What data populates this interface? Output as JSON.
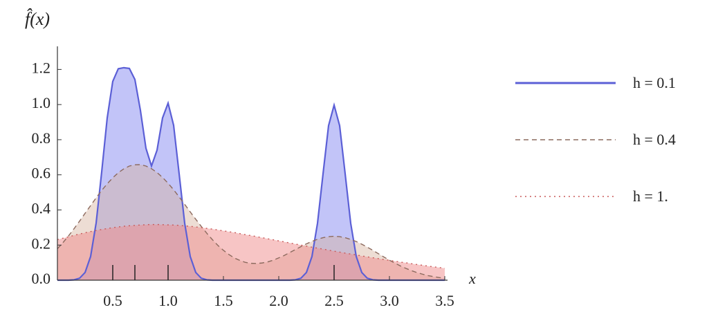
{
  "chart_data": {
    "type": "area",
    "title": "f̂(x)",
    "x_label": "x",
    "x": [
      0,
      0.05,
      0.1,
      0.15,
      0.2,
      0.25,
      0.3,
      0.35,
      0.4,
      0.45,
      0.5,
      0.55,
      0.6,
      0.65,
      0.7,
      0.75,
      0.8,
      0.85,
      0.9,
      0.95,
      1.0,
      1.05,
      1.1,
      1.15,
      1.2,
      1.25,
      1.3,
      1.35,
      1.4,
      1.45,
      1.5,
      1.55,
      1.6,
      1.65,
      1.7,
      1.75,
      1.8,
      1.85,
      1.9,
      1.95,
      2.0,
      2.05,
      2.1,
      2.15,
      2.2,
      2.25,
      2.3,
      2.35,
      2.4,
      2.45,
      2.5,
      2.55,
      2.6,
      2.65,
      2.7,
      2.75,
      2.8,
      2.85,
      2.9,
      2.95,
      3.0,
      3.05,
      3.1,
      3.15,
      3.2,
      3.25,
      3.3,
      3.35,
      3.4,
      3.45,
      3.5
    ],
    "series": [
      {
        "name": "h = 0.1",
        "color": "#5b5fd6",
        "fill": "rgba(120,125,240,0.45)",
        "style": "solid",
        "values": [
          0,
          0,
          0,
          0.002,
          0.011,
          0.044,
          0.135,
          0.326,
          0.616,
          0.924,
          1.132,
          1.204,
          1.21,
          1.206,
          1.143,
          0.967,
          0.751,
          0.65,
          0.74,
          0.924,
          1.008,
          0.882,
          0.605,
          0.324,
          0.135,
          0.044,
          0.011,
          0.002,
          0,
          0,
          0,
          0,
          0,
          0,
          0,
          0,
          0,
          0,
          0,
          0,
          0,
          0,
          0,
          0.002,
          0.011,
          0.044,
          0.135,
          0.324,
          0.605,
          0.88,
          0.997,
          0.88,
          0.605,
          0.324,
          0.135,
          0.044,
          0.011,
          0.002,
          0,
          0,
          0,
          0,
          0,
          0,
          0,
          0,
          0,
          0,
          0,
          0,
          0
        ]
      },
      {
        "name": "h = 0.4",
        "color": "#8c6a5e",
        "fill": "rgba(215,180,160,0.45)",
        "style": "dashed",
        "values": [
          0.179,
          0.214,
          0.252,
          0.293,
          0.336,
          0.381,
          0.425,
          0.469,
          0.511,
          0.549,
          0.583,
          0.612,
          0.634,
          0.65,
          0.657,
          0.658,
          0.65,
          0.635,
          0.613,
          0.585,
          0.552,
          0.515,
          0.474,
          0.432,
          0.389,
          0.347,
          0.306,
          0.267,
          0.231,
          0.198,
          0.17,
          0.146,
          0.126,
          0.112,
          0.101,
          0.096,
          0.095,
          0.098,
          0.104,
          0.114,
          0.127,
          0.141,
          0.158,
          0.174,
          0.191,
          0.207,
          0.221,
          0.233,
          0.242,
          0.248,
          0.25,
          0.248,
          0.242,
          0.232,
          0.22,
          0.205,
          0.188,
          0.17,
          0.151,
          0.132,
          0.114,
          0.097,
          0.081,
          0.067,
          0.054,
          0.043,
          0.034,
          0.026,
          0.02,
          0.015,
          0.011
        ]
      },
      {
        "name": "h = 1.",
        "color": "#c85a5a",
        "fill": "rgba(240,140,140,0.5)",
        "style": "dotted",
        "values": [
          0.231,
          0.239,
          0.247,
          0.255,
          0.263,
          0.27,
          0.277,
          0.283,
          0.289,
          0.294,
          0.299,
          0.303,
          0.307,
          0.31,
          0.312,
          0.314,
          0.316,
          0.317,
          0.317,
          0.316,
          0.315,
          0.314,
          0.312,
          0.309,
          0.307,
          0.303,
          0.3,
          0.295,
          0.291,
          0.286,
          0.281,
          0.276,
          0.271,
          0.265,
          0.259,
          0.254,
          0.248,
          0.242,
          0.236,
          0.23,
          0.224,
          0.218,
          0.212,
          0.206,
          0.2,
          0.194,
          0.188,
          0.182,
          0.177,
          0.171,
          0.165,
          0.16,
          0.154,
          0.149,
          0.144,
          0.138,
          0.133,
          0.128,
          0.123,
          0.118,
          0.113,
          0.108,
          0.103,
          0.099,
          0.094,
          0.089,
          0.085,
          0.08,
          0.076,
          0.072,
          0.068
        ]
      }
    ],
    "rug": [
      0.5,
      0.7,
      1.0,
      2.5
    ],
    "xlim": [
      0,
      3.5
    ],
    "ylim": [
      0,
      1.3
    ],
    "xticks": [
      0.5,
      {
        "value": 1.0,
        "label": "1.0"
      },
      1.5,
      {
        "value": 2.0,
        "label": "2.0"
      },
      2.5,
      {
        "value": 3.0,
        "label": "3.0"
      },
      3.5
    ],
    "yticks": [
      {
        "value": 0,
        "label": "0.0"
      },
      0.2,
      0.4,
      0.6,
      0.8,
      {
        "value": 1.0,
        "label": "1.0"
      },
      1.2
    ],
    "legend": "right"
  }
}
